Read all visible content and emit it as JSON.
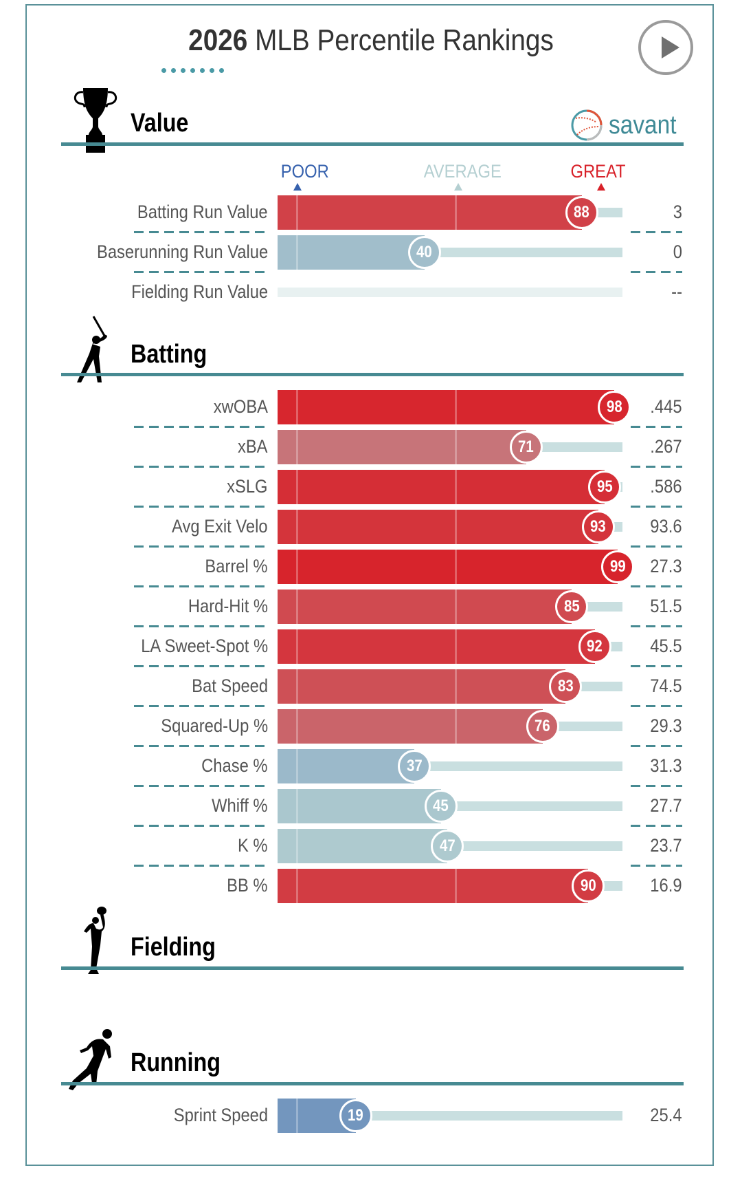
{
  "header": {
    "year": "2026",
    "title_rest": "MLB Percentile Rankings",
    "play_button": "play-icon",
    "brand": "savant"
  },
  "scale": {
    "poor": "POOR",
    "average": "AVERAGE",
    "great": "GREAT"
  },
  "colors": {
    "accent": "#478a92",
    "poor": "#3661ad",
    "average": "#b4cfd1",
    "great": "#d82129"
  },
  "sections": {
    "value": {
      "title": "Value",
      "rows": [
        {
          "label": "Batting Run Value",
          "percentile": 88,
          "value": "3"
        },
        {
          "label": "Baserunning Run Value",
          "percentile": 40,
          "value": "0"
        },
        {
          "label": "Fielding Run Value",
          "percentile": null,
          "value": "--"
        }
      ]
    },
    "batting": {
      "title": "Batting",
      "rows": [
        {
          "label": "xwOBA",
          "percentile": 98,
          "value": ".445"
        },
        {
          "label": "xBA",
          "percentile": 71,
          "value": ".267"
        },
        {
          "label": "xSLG",
          "percentile": 95,
          "value": ".586"
        },
        {
          "label": "Avg Exit Velo",
          "percentile": 93,
          "value": "93.6"
        },
        {
          "label": "Barrel %",
          "percentile": 99,
          "value": "27.3"
        },
        {
          "label": "Hard-Hit %",
          "percentile": 85,
          "value": "51.5"
        },
        {
          "label": "LA Sweet-Spot %",
          "percentile": 92,
          "value": "45.5"
        },
        {
          "label": "Bat Speed",
          "percentile": 83,
          "value": "74.5"
        },
        {
          "label": "Squared-Up %",
          "percentile": 76,
          "value": "29.3"
        },
        {
          "label": "Chase %",
          "percentile": 37,
          "value": "31.3"
        },
        {
          "label": "Whiff %",
          "percentile": 45,
          "value": "27.7"
        },
        {
          "label": "K %",
          "percentile": 47,
          "value": "23.7"
        },
        {
          "label": "BB %",
          "percentile": 90,
          "value": "16.9"
        }
      ]
    },
    "fielding": {
      "title": "Fielding",
      "rows": []
    },
    "running": {
      "title": "Running",
      "rows": [
        {
          "label": "Sprint Speed",
          "percentile": 19,
          "value": "25.4"
        }
      ]
    }
  },
  "chart_data": {
    "type": "bar",
    "title": "2026 MLB Percentile Rankings",
    "xlim": [
      0,
      100
    ],
    "scale_labels": [
      "POOR",
      "AVERAGE",
      "GREAT"
    ],
    "categories": [
      "Batting Run Value",
      "Baserunning Run Value",
      "Fielding Run Value",
      "xwOBA",
      "xBA",
      "xSLG",
      "Avg Exit Velo",
      "Barrel %",
      "Hard-Hit %",
      "LA Sweet-Spot %",
      "Bat Speed",
      "Squared-Up %",
      "Chase %",
      "Whiff %",
      "K %",
      "BB %",
      "Sprint Speed"
    ],
    "values": [
      88,
      40,
      null,
      98,
      71,
      95,
      93,
      99,
      85,
      92,
      83,
      76,
      37,
      45,
      47,
      90,
      19
    ]
  }
}
